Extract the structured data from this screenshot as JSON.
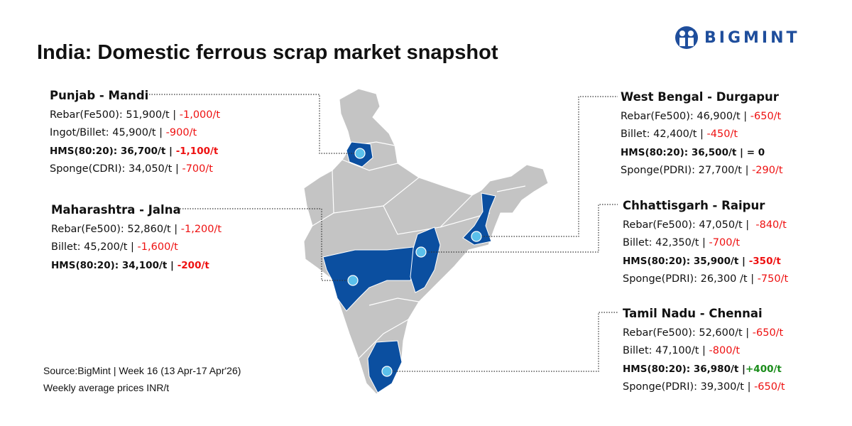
{
  "title": "India: Domestic ferrous scrap market snapshot",
  "logo": {
    "text": "BIGMINT",
    "color": "#1f4e9c"
  },
  "colors": {
    "map_gray": "#c4c4c4",
    "highlight": "#0b4fa0",
    "marker": "#5bc0eb",
    "negative": "#ee1111",
    "positive": "#1a8c1a"
  },
  "regions": [
    {
      "name": "Punjab - Mandi",
      "rows": [
        {
          "label": "Rebar(Fe500): 51,900/t | ",
          "change": "-1,000/t",
          "trend": "neg"
        },
        {
          "label": "Ingot/Billet: 45,900/t | ",
          "change": "-900/t",
          "trend": "neg"
        },
        {
          "label": "HMS(80:20): 36,700/t | ",
          "change": "-1,100/t",
          "trend": "neg",
          "bold": true
        },
        {
          "label": "Sponge(CDRI): 34,050/t | ",
          "change": "-700/t",
          "trend": "neg"
        }
      ]
    },
    {
      "name": "Maharashtra - Jalna",
      "rows": [
        {
          "label": "Rebar(Fe500): 52,860/t | ",
          "change": "-1,200/t",
          "trend": "neg"
        },
        {
          "label": "Billet: 45,200/t | ",
          "change": "-1,600/t",
          "trend": "neg"
        },
        {
          "label": "HMS(80:20): 34,100/t | ",
          "change": "-200/t",
          "trend": "neg",
          "bold": true
        }
      ]
    },
    {
      "name": "West Bengal - Durgapur",
      "rows": [
        {
          "label": "Rebar(Fe500): 46,900/t | ",
          "change": "-650/t",
          "trend": "neg"
        },
        {
          "label": "Billet: 42,400/t | ",
          "change": "-450/t",
          "trend": "neg"
        },
        {
          "label": "HMS(80:20): 36,500/t | ",
          "change": "= 0",
          "trend": "flat",
          "bold": true
        },
        {
          "label": "Sponge(PDRI): 27,700/t | ",
          "change": "-290/t",
          "trend": "neg"
        }
      ]
    },
    {
      "name": "Chhattisgarh - Raipur",
      "rows": [
        {
          "label": "Rebar(Fe500): 47,050/t |  ",
          "change": "-840/t",
          "trend": "neg"
        },
        {
          "label": "Billet: 42,350/t | ",
          "change": "-700/t",
          "trend": "neg"
        },
        {
          "label": "HMS(80:20): 35,900/t | ",
          "change": "-350/t",
          "trend": "neg",
          "bold": true
        },
        {
          "label": "Sponge(PDRI): 26,300 /t | ",
          "change": "-750/t",
          "trend": "neg"
        }
      ]
    },
    {
      "name": "Tamil Nadu - Chennai",
      "rows": [
        {
          "label": "Rebar(Fe500): 52,600/t | ",
          "change": "-650/t",
          "trend": "neg"
        },
        {
          "label": "Billet: 47,100/t | ",
          "change": "-800/t",
          "trend": "neg"
        },
        {
          "label": "HMS(80:20): 36,980/t |",
          "change": "+400/t",
          "trend": "pos",
          "bold": true
        },
        {
          "label": "Sponge(PDRI): 39,300/t | ",
          "change": "-650/t",
          "trend": "neg"
        }
      ]
    }
  ],
  "source": "Source:BigMint | Week 16  (13 Apr-17 Apr'26)",
  "note": "Weekly average prices INR/t"
}
